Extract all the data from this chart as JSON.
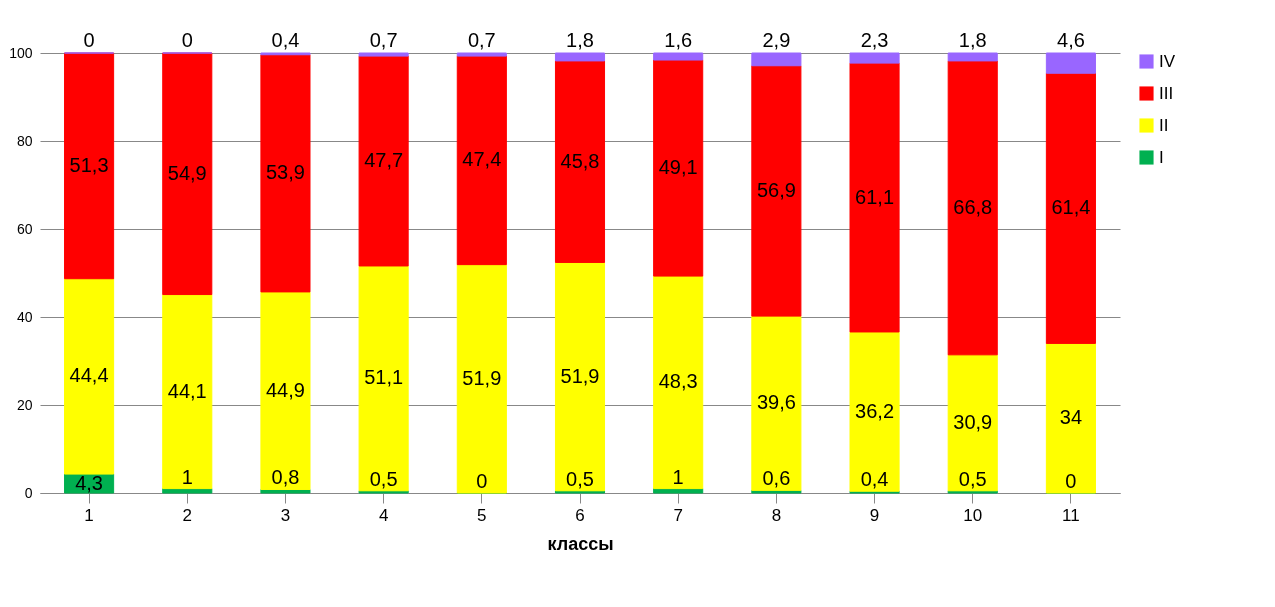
{
  "chart_data": {
    "type": "bar",
    "stacked": true,
    "xlabel": "классы",
    "categories": [
      "1",
      "2",
      "3",
      "4",
      "5",
      "6",
      "7",
      "8",
      "9",
      "10",
      "11"
    ],
    "ylim": [
      0,
      100
    ],
    "yticks": [
      0,
      20,
      40,
      60,
      80,
      100
    ],
    "grid": "y",
    "legend": "right",
    "series": [
      {
        "name": "I",
        "color": "#00b050",
        "values": [
          4.3,
          1,
          0.8,
          0.5,
          0,
          0.5,
          1,
          0.6,
          0.4,
          0.5,
          0
        ],
        "value_labels": [
          "4,3",
          "1",
          "0,8",
          "0,5",
          "0",
          "0,5",
          "1",
          "0,6",
          "0,4",
          "0,5",
          "0"
        ]
      },
      {
        "name": "II",
        "color": "#ffff00",
        "values": [
          44.4,
          44.1,
          44.9,
          51.1,
          51.9,
          51.9,
          48.3,
          39.6,
          36.2,
          30.9,
          34
        ],
        "value_labels": [
          "44,4",
          "44,1",
          "44,9",
          "51,1",
          "51,9",
          "51,9",
          "48,3",
          "39,6",
          "36,2",
          "30,9",
          "34"
        ]
      },
      {
        "name": "III",
        "color": "#ff0000",
        "values": [
          51.3,
          54.9,
          53.9,
          47.7,
          47.4,
          45.8,
          49.1,
          56.9,
          61.1,
          66.8,
          61.4
        ],
        "value_labels": [
          "51,3",
          "54,9",
          "53,9",
          "47,7",
          "47,4",
          "45,8",
          "49,1",
          "56,9",
          "61,1",
          "66,8",
          "61,4"
        ]
      },
      {
        "name": "IV",
        "color": "#9966ff",
        "values": [
          0,
          0,
          0.4,
          0.7,
          0.7,
          1.8,
          1.6,
          2.9,
          2.3,
          1.8,
          4.6
        ],
        "value_labels": [
          "0",
          "0",
          "0,4",
          "0,7",
          "0,7",
          "1,8",
          "1,6",
          "2,9",
          "2,3",
          "1,8",
          "4,6"
        ]
      }
    ]
  }
}
